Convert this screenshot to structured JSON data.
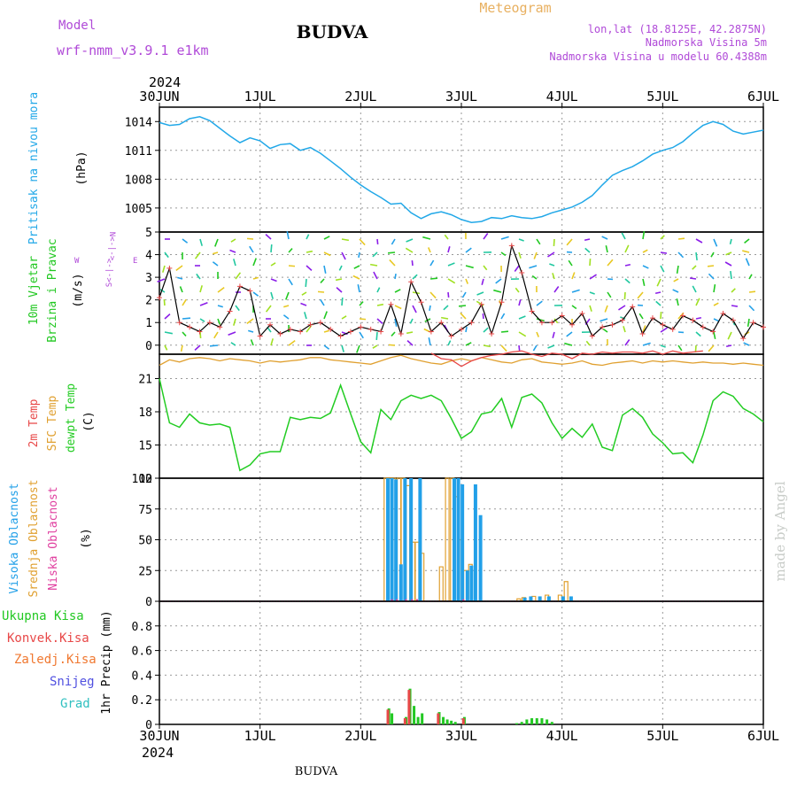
{
  "header": {
    "model_label": "Model",
    "model_name": "wrf-nmm_v3.9.1 e1km",
    "title": "BUDVA",
    "meteogram": "Meteogram",
    "lonlat": "lon,lat (18.8125E, 42.2875N)",
    "elevation": "Nadmorska Visina 5m",
    "model_elevation": "Nadmorska Visina u modelu 60.4388m",
    "footer": "BUDVA",
    "watermark": "made by Angel"
  },
  "time_axis": {
    "top_year": "2024",
    "bottom_year": "2024",
    "labels": [
      "30JUN",
      "1JUL",
      "2JUL",
      "3JUL",
      "4JUL",
      "5JUL",
      "6JUL"
    ]
  },
  "labels": {
    "pressure": "Pritisak na nivou mora",
    "pressure_unit": "(hPa)",
    "wind1": "10m Vjetar",
    "wind2": "Brzina i Pravac",
    "wind_unit": "(m/s)",
    "compass_w": "W",
    "compass_e": "E",
    "compass_n": "N<-|->",
    "compass_s": "S<-|->",
    "temp_2m": "2m Temp",
    "temp_sfc": "SFC Temp",
    "temp_dewpt": "dewpt Temp",
    "temp_unit": "(C)",
    "cloud_high": "Visoka Oblacnost",
    "cloud_mid": "Srednja Oblacnost",
    "cloud_low": "Niska Oblacnost",
    "cloud_unit": "(%)",
    "precip_total": "Ukupna Kisa",
    "precip_conv": "Konvek.Kisa",
    "precip_frozen": "Zaledj.Kisa",
    "precip_snow": "Snijeg",
    "precip_graupel": "Grad",
    "precip_unit": "1hr Precip (mm)"
  },
  "colors": {
    "title_purple": "#b04ad8",
    "meteogram_orange": "#e8b060",
    "pressure": "#22a8e8",
    "wind_green": "#22c822",
    "temp_red": "#e84848",
    "sfc_orange": "#e0a030",
    "dewpt_green": "#22cc22",
    "cloud_blue": "#22a0e8",
    "cloud_orange": "#e0a030",
    "cloud_magenta": "#e040a0",
    "precip_green": "#22c822",
    "precip_red": "#e84848",
    "precip_orange": "#f07830",
    "precip_snow": "#5050e0",
    "precip_graupel": "#30c0c0"
  },
  "chart_data": [
    {
      "type": "line",
      "name": "pressure",
      "ylabel": "Pritisak na nivou mora (hPa)",
      "ylim": [
        1002.5,
        1015.5
      ],
      "yticks": [
        1005,
        1008,
        1011,
        1014
      ],
      "x": [
        0,
        0.1,
        0.2,
        0.3,
        0.4,
        0.5,
        0.6,
        0.7,
        0.8,
        0.9,
        1.0,
        1.1,
        1.2,
        1.3,
        1.4,
        1.5,
        1.6,
        1.7,
        1.8,
        1.9,
        2.0,
        2.1,
        2.2,
        2.3,
        2.4,
        2.5,
        2.6,
        2.7,
        2.8,
        2.9,
        3.0,
        3.1,
        3.2,
        3.3,
        3.4,
        3.5,
        3.6,
        3.7,
        3.8,
        3.9,
        4.0,
        4.1,
        4.2,
        4.3,
        4.4,
        4.5,
        4.6,
        4.7,
        4.8,
        4.9,
        5.0,
        5.1,
        5.2,
        5.3,
        5.4,
        5.5,
        5.6,
        5.7,
        5.8,
        5.9,
        6.0
      ],
      "series": [
        {
          "values": [
            1013.9,
            1013.6,
            1013.7,
            1014.3,
            1014.5,
            1014.1,
            1013.3,
            1012.5,
            1011.8,
            1012.3,
            1012.0,
            1011.2,
            1011.6,
            1011.7,
            1011.0,
            1011.3,
            1010.7,
            1009.9,
            1009.1,
            1008.2,
            1007.4,
            1006.7,
            1006.1,
            1005.4,
            1005.5,
            1004.5,
            1003.9,
            1004.4,
            1004.6,
            1004.3,
            1003.8,
            1003.5,
            1003.6,
            1004.0,
            1003.9,
            1004.2,
            1004.0,
            1003.9,
            1004.1,
            1004.5,
            1004.8,
            1005.1,
            1005.6,
            1006.3,
            1007.4,
            1008.4,
            1008.9,
            1009.3,
            1009.9,
            1010.6,
            1011.0,
            1011.3,
            1011.9,
            1012.8,
            1013.6,
            1014.0,
            1013.7,
            1013.0,
            1012.7,
            1012.9,
            1013.1
          ]
        }
      ]
    },
    {
      "type": "line",
      "name": "wind",
      "ylabel": "10m Vjetar Brzina i Pravac (m/s)",
      "ylim": [
        -0.4,
        5
      ],
      "yticks": [
        0,
        1,
        2,
        3,
        4,
        5
      ],
      "x": [
        0,
        0.1,
        0.2,
        0.3,
        0.4,
        0.5,
        0.6,
        0.7,
        0.8,
        0.9,
        1.0,
        1.1,
        1.2,
        1.3,
        1.4,
        1.5,
        1.6,
        1.7,
        1.8,
        1.9,
        2.0,
        2.1,
        2.2,
        2.3,
        2.4,
        2.5,
        2.6,
        2.7,
        2.8,
        2.9,
        3.0,
        3.1,
        3.2,
        3.3,
        3.4,
        3.5,
        3.6,
        3.7,
        3.8,
        3.9,
        4.0,
        4.1,
        4.2,
        4.3,
        4.4,
        4.5,
        4.6,
        4.7,
        4.8,
        4.9,
        5.0,
        5.1,
        5.2,
        5.3,
        5.4,
        5.5,
        5.6,
        5.7,
        5.8,
        5.9,
        6.0
      ],
      "series": [
        {
          "values": [
            2.1,
            3.4,
            1.0,
            0.8,
            0.6,
            1.0,
            0.8,
            1.5,
            2.6,
            2.4,
            0.4,
            0.9,
            0.5,
            0.7,
            0.6,
            0.9,
            1.0,
            0.7,
            0.4,
            0.6,
            0.8,
            0.7,
            0.6,
            1.8,
            0.5,
            2.8,
            1.9,
            0.6,
            1.0,
            0.4,
            0.7,
            1.0,
            1.8,
            0.5,
            1.9,
            4.4,
            3.2,
            1.5,
            1.0,
            1.0,
            1.3,
            0.9,
            1.4,
            0.4,
            0.8,
            0.9,
            1.1,
            1.7,
            0.5,
            1.2,
            0.9,
            0.7,
            1.3,
            1.1,
            0.8,
            0.6,
            1.4,
            1.1,
            0.3,
            1.0,
            0.8
          ]
        }
      ]
    },
    {
      "type": "line",
      "name": "temperature",
      "ylabel": "(C)",
      "ylim": [
        12,
        23.2
      ],
      "yticks": [
        12,
        15,
        18,
        21
      ],
      "x": [
        0,
        0.1,
        0.2,
        0.3,
        0.4,
        0.5,
        0.6,
        0.7,
        0.8,
        0.9,
        1.0,
        1.1,
        1.2,
        1.3,
        1.4,
        1.5,
        1.6,
        1.7,
        1.8,
        1.9,
        2.0,
        2.1,
        2.2,
        2.3,
        2.4,
        2.5,
        2.6,
        2.7,
        2.8,
        2.9,
        3.0,
        3.1,
        3.2,
        3.3,
        3.4,
        3.5,
        3.6,
        3.7,
        3.8,
        3.9,
        4.0,
        4.1,
        4.2,
        4.3,
        4.4,
        4.5,
        4.6,
        4.7,
        4.8,
        4.9,
        5.0,
        5.1,
        5.2,
        5.3,
        5.4,
        5.5,
        5.6,
        5.7,
        5.8,
        5.9,
        6.0
      ],
      "series": [
        {
          "name": "2m Temp",
          "values": [
            null,
            null,
            null,
            null,
            null,
            null,
            null,
            null,
            null,
            null,
            null,
            null,
            null,
            null,
            null,
            null,
            null,
            null,
            null,
            null,
            null,
            null,
            null,
            null,
            null,
            null,
            null,
            23.3,
            22.8,
            22.7,
            22.1,
            22.6,
            22.9,
            23.1,
            23.2,
            23.4,
            23.5,
            23.2,
            23.0,
            23.3,
            23.2,
            22.8,
            23.3,
            23.2,
            23.4,
            23.3,
            23.4,
            23.4,
            23.3,
            23.5,
            23.2,
            23.5,
            23.3,
            23.4,
            23.5,
            null,
            null,
            null,
            null,
            null,
            null
          ]
        },
        {
          "name": "SFC Temp",
          "values": [
            22.2,
            22.7,
            22.5,
            22.8,
            22.9,
            22.8,
            22.6,
            22.8,
            22.7,
            22.6,
            22.4,
            22.6,
            22.5,
            22.6,
            22.7,
            22.9,
            22.9,
            22.7,
            22.6,
            22.5,
            22.4,
            22.3,
            22.6,
            22.9,
            23.1,
            22.8,
            22.6,
            22.4,
            22.3,
            22.6,
            22.8,
            22.6,
            22.9,
            22.7,
            22.5,
            22.4,
            22.7,
            22.8,
            22.5,
            22.4,
            22.3,
            22.4,
            22.6,
            22.3,
            22.2,
            22.4,
            22.5,
            22.6,
            22.4,
            22.6,
            22.5,
            22.6,
            22.5,
            22.4,
            22.5,
            22.4,
            22.4,
            22.3,
            22.4,
            22.3,
            22.2
          ]
        },
        {
          "name": "dewpt Temp",
          "values": [
            21.0,
            17.0,
            16.6,
            17.8,
            17.0,
            16.8,
            16.9,
            16.6,
            12.7,
            13.2,
            14.2,
            14.4,
            14.4,
            17.5,
            17.3,
            17.5,
            17.4,
            17.9,
            20.4,
            17.8,
            15.3,
            14.3,
            18.2,
            17.3,
            19.0,
            19.5,
            19.2,
            19.5,
            19.0,
            17.4,
            15.6,
            16.2,
            17.8,
            18.0,
            19.2,
            16.6,
            19.3,
            19.6,
            18.8,
            17.0,
            15.6,
            16.5,
            15.7,
            16.9,
            14.8,
            14.5,
            17.7,
            18.3,
            17.5,
            16.0,
            15.2,
            14.2,
            14.3,
            13.4,
            15.9,
            19.0,
            19.8,
            19.4,
            18.3,
            17.8,
            17.1
          ]
        }
      ]
    },
    {
      "type": "bar",
      "name": "clouds",
      "ylabel": "(%)",
      "ylim": [
        0,
        100
      ],
      "yticks": [
        0,
        25,
        50,
        75,
        100
      ],
      "series": [
        {
          "name": "Visoka Oblacnost",
          "x": [
            2.27,
            2.31,
            2.35,
            2.4,
            2.44,
            2.5,
            2.59,
            2.93,
            2.97,
            3.01,
            3.06,
            3.1,
            3.14,
            3.19,
            3.63,
            3.69,
            3.78,
            3.87,
            4.01,
            4.09
          ],
          "values": [
            100,
            100,
            99,
            30,
            100,
            100,
            100,
            100,
            100,
            95,
            25,
            29,
            95,
            70,
            3,
            4,
            4,
            4,
            4,
            4
          ]
        },
        {
          "name": "Srednja Oblacnost",
          "x": [
            2.25,
            2.29,
            2.33,
            2.38,
            2.42,
            2.47,
            2.52,
            2.56,
            2.61,
            2.8,
            2.86,
            2.91,
            2.95,
            3.0,
            3.04,
            3.09,
            3.57,
            3.62,
            3.72,
            3.85,
            3.98,
            4.04
          ],
          "values": [
            100,
            100,
            100,
            100,
            100,
            94,
            48,
            48,
            39,
            28,
            100,
            100,
            85,
            50,
            25,
            30,
            2,
            3,
            4,
            5,
            5,
            16
          ]
        },
        {
          "name": "Niska Oblacnost",
          "x": [
            2.31,
            2.36,
            2.45,
            2.51,
            2.56,
            3.02
          ],
          "values": [
            1,
            1,
            1,
            1,
            1,
            1
          ]
        }
      ]
    },
    {
      "type": "bar",
      "name": "precipitation",
      "ylabel": "1hr Precip (mm)",
      "ylim": [
        0,
        1.0
      ],
      "yticks": [
        0,
        0.2,
        0.4,
        0.6,
        0.8
      ],
      "series": [
        {
          "name": "Ukupna Kisa",
          "x": [
            2.28,
            2.31,
            2.45,
            2.49,
            2.53,
            2.57,
            2.61,
            2.78,
            2.82,
            2.86,
            2.9,
            2.94,
            3.03,
            3.55,
            3.6,
            3.65,
            3.7,
            3.75,
            3.8,
            3.85,
            3.9
          ],
          "values": [
            0.13,
            0.09,
            0.06,
            0.29,
            0.15,
            0.06,
            0.09,
            0.1,
            0.06,
            0.04,
            0.03,
            0.02,
            0.06,
            0.01,
            0.02,
            0.04,
            0.05,
            0.05,
            0.05,
            0.04,
            0.02
          ]
        },
        {
          "name": "Konvek.Kisa",
          "x": [
            2.27,
            2.44,
            2.48,
            2.77,
            3.02
          ],
          "values": [
            0.12,
            0.05,
            0.28,
            0.09,
            0.05
          ]
        }
      ]
    }
  ]
}
